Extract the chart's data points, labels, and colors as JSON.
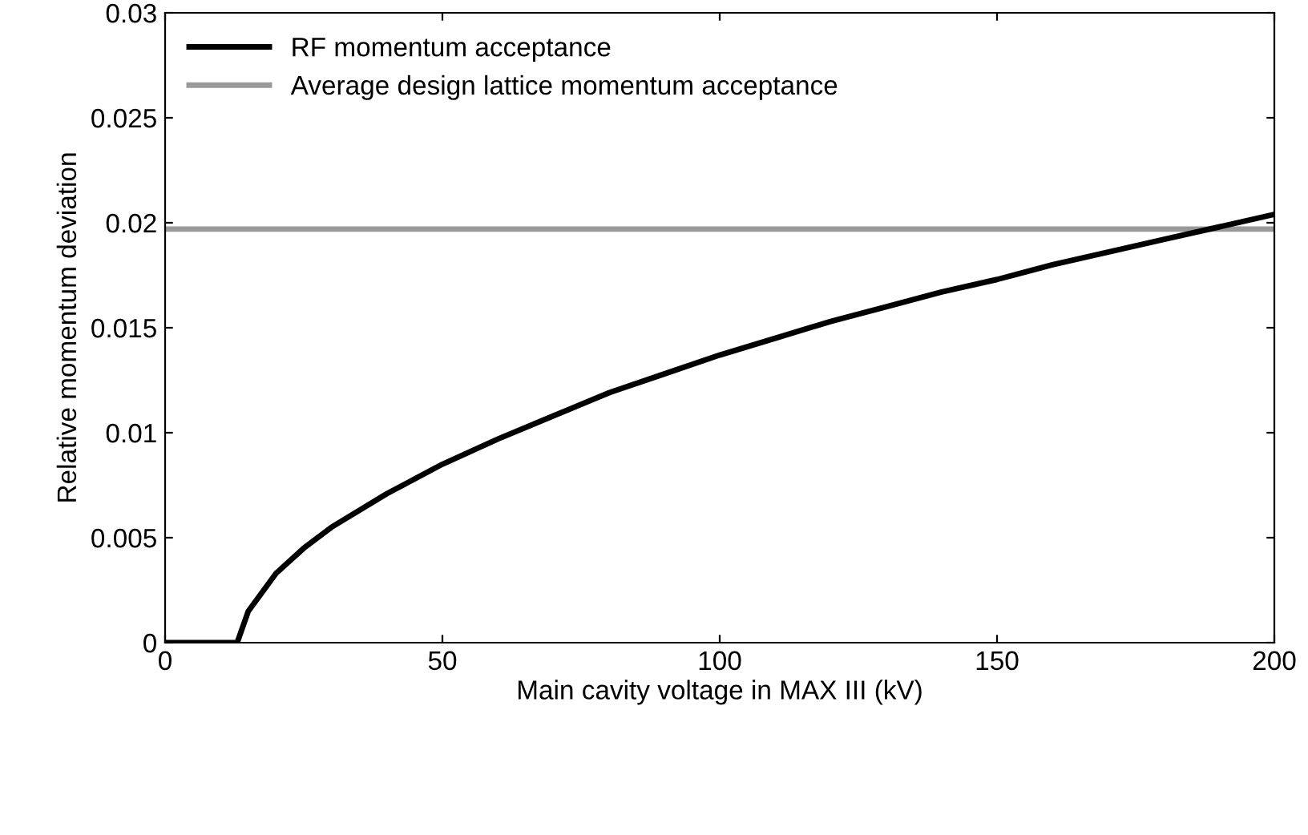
{
  "chart_data": {
    "type": "line",
    "xlabel": "Main cavity voltage in MAX III (kV)",
    "ylabel": "Relative momentum deviation",
    "series": [
      {
        "name": "RF momentum acceptance",
        "color": "#000000",
        "x": [
          0,
          12.5,
          13,
          15,
          20,
          25,
          30,
          40,
          50,
          60,
          70,
          80,
          90,
          100,
          110,
          120,
          130,
          140,
          150,
          160,
          170,
          180,
          190,
          200
        ],
        "values": [
          0,
          0,
          0,
          0.0015,
          0.0033,
          0.0045,
          0.0055,
          0.0071,
          0.0085,
          0.0097,
          0.0108,
          0.0119,
          0.0128,
          0.0137,
          0.0145,
          0.0153,
          0.016,
          0.0167,
          0.0173,
          0.018,
          0.0186,
          0.0192,
          0.0198,
          0.0204
        ]
      }
    ],
    "ref_lines": [
      {
        "axis": "y",
        "value": 0.0197,
        "label": "Average design lattice momentum acceptance",
        "color": "#999999",
        "line_style": "solid"
      }
    ],
    "xlim": [
      0,
      200
    ],
    "xticks": [
      0,
      50,
      100,
      150,
      200
    ],
    "ylim": [
      0,
      0.03
    ],
    "yticks": [
      0,
      0.005,
      0.01,
      0.015,
      0.02,
      0.025,
      0.03
    ],
    "grid": false,
    "legend": "top left",
    "line_style": "solid",
    "marker": "none"
  }
}
